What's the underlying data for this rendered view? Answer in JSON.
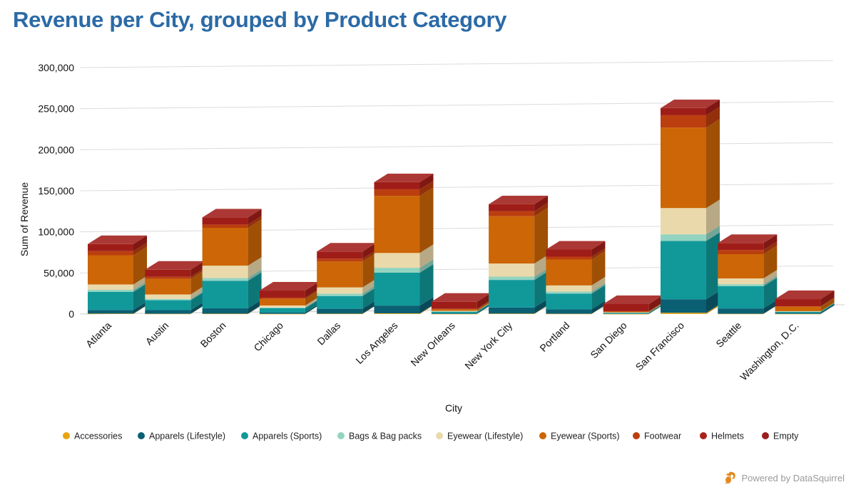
{
  "chart_data": {
    "type": "bar",
    "stacked": true,
    "three_d": true,
    "title": "Revenue per City, grouped by Product Category",
    "xlabel": "City",
    "ylabel": "Sum of Revenue",
    "ylim": [
      0,
      300000
    ],
    "yticks": [
      0,
      50000,
      100000,
      150000,
      200000,
      250000,
      300000
    ],
    "ytick_labels": [
      "0",
      "50,000",
      "100,000",
      "150,000",
      "200,000",
      "250,000",
      "300,000"
    ],
    "grid": true,
    "legend_position": "bottom",
    "categories": [
      "Atlanta",
      "Austin",
      "Boston",
      "Chicago",
      "Dallas",
      "Los Angeles",
      "New Orleans",
      "New York City",
      "Portland",
      "San Diego",
      "San Francisco",
      "Seattle",
      "Washington, D.C."
    ],
    "series": [
      {
        "name": "Accessories",
        "color": "#e8a512",
        "values": [
          500,
          300,
          400,
          200,
          400,
          800,
          200,
          500,
          300,
          100,
          1500,
          300,
          200
        ]
      },
      {
        "name": "Apparels (Lifestyle)",
        "color": "#0b5f73",
        "values": [
          4500,
          4500,
          6500,
          1500,
          6000,
          9500,
          700,
          7500,
          5500,
          500,
          16500,
          6500,
          1200
        ]
      },
      {
        "name": "Apparels (Sports)",
        "color": "#11999a",
        "values": [
          22000,
          12000,
          33500,
          5500,
          15500,
          40000,
          2000,
          33500,
          19000,
          1000,
          71000,
          27000,
          1500
        ]
      },
      {
        "name": "Bags & Bag packs",
        "color": "#93d4c0",
        "values": [
          2500,
          1500,
          3500,
          700,
          3000,
          6000,
          300,
          4000,
          2500,
          200,
          8000,
          2500,
          200
        ]
      },
      {
        "name": "Eyewear (Lifestyle)",
        "color": "#ead9aa",
        "values": [
          6500,
          5500,
          15000,
          2500,
          7500,
          18000,
          600,
          16000,
          7500,
          400,
          32000,
          7000,
          400
        ]
      },
      {
        "name": "Eyewear (Sports)",
        "color": "#cc6606",
        "values": [
          35500,
          19000,
          46000,
          8000,
          31500,
          69500,
          2000,
          57500,
          31500,
          1000,
          98000,
          29500,
          5500
        ]
      },
      {
        "name": "Footwear",
        "color": "#bb3e0e",
        "values": [
          5000,
          2500,
          4000,
          1500,
          3500,
          8000,
          500,
          6000,
          3500,
          300,
          15000,
          5000,
          500
        ]
      },
      {
        "name": "Helmets",
        "color": "#a8231b",
        "values": [
          0,
          0,
          0,
          0,
          0,
          0,
          0,
          0,
          0,
          0,
          0,
          0,
          0
        ]
      },
      {
        "name": "Empty",
        "color": "#9a1f1f",
        "values": [
          0,
          0,
          0,
          0,
          0,
          0,
          0,
          0,
          0,
          0,
          0,
          0,
          0
        ]
      }
    ]
  },
  "footer": {
    "text": "Powered by DataSquirrel"
  }
}
